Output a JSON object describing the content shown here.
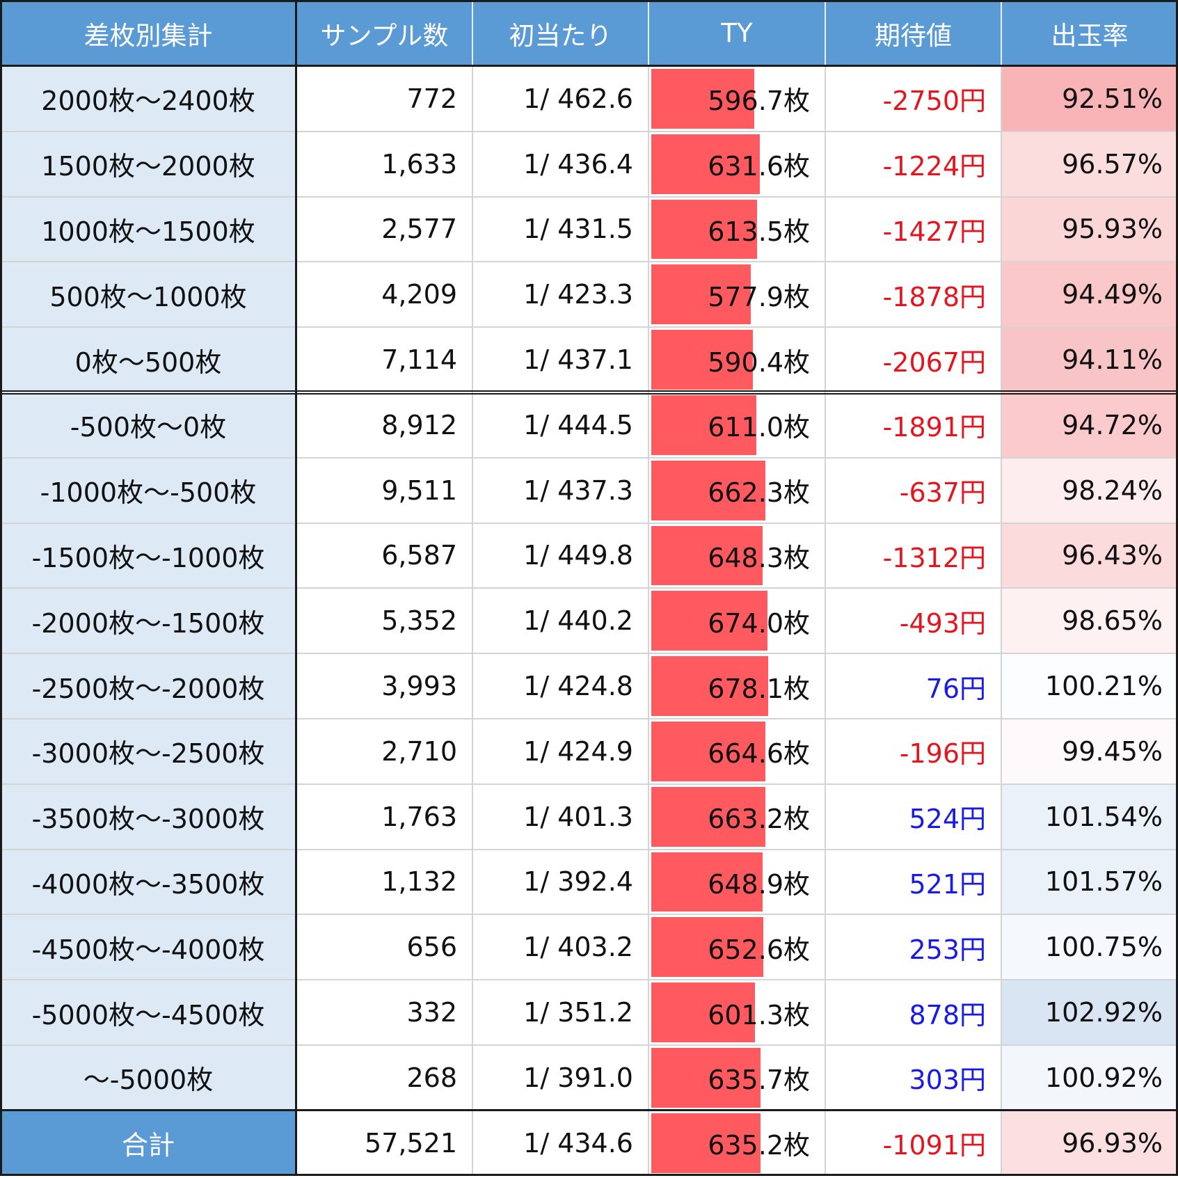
{
  "headers": [
    "差枚別集計",
    "サンプル数",
    "初当たり",
    "TY",
    "期待値",
    "出玉率"
  ],
  "rows": [
    {
      "label": "2000枚～2400枚",
      "samples": "772",
      "first_hit": "1/ 462.6",
      "ty": "596.7枚",
      "expected": "-2750円",
      "payout": "92.51%"
    },
    {
      "label": "1500枚～2000枚",
      "samples": "1,633",
      "first_hit": "1/ 436.4",
      "ty": "631.6枚",
      "expected": "-1224円",
      "payout": "96.57%"
    },
    {
      "label": "1000枚～1500枚",
      "samples": "2,577",
      "first_hit": "1/ 431.5",
      "ty": "613.5枚",
      "expected": "-1427円",
      "payout": "95.93%"
    },
    {
      "label": "500枚～1000枚",
      "samples": "4,209",
      "first_hit": "1/ 423.3",
      "ty": "577.9枚",
      "expected": "-1878円",
      "payout": "94.49%"
    },
    {
      "label": "0枚～500枚",
      "samples": "7,114",
      "first_hit": "1/ 437.1",
      "ty": "590.4枚",
      "expected": "-2067円",
      "payout": "94.11%"
    },
    {
      "label": "-500枚～0枚",
      "samples": "8,912",
      "first_hit": "1/ 444.5",
      "ty": "611.0枚",
      "expected": "-1891円",
      "payout": "94.72%"
    },
    {
      "label": "-1000枚～-500枚",
      "samples": "9,511",
      "first_hit": "1/ 437.3",
      "ty": "662.3枚",
      "expected": "-637円",
      "payout": "98.24%"
    },
    {
      "label": "-1500枚～-1000枚",
      "samples": "6,587",
      "first_hit": "1/ 449.8",
      "ty": "648.3枚",
      "expected": "-1312円",
      "payout": "96.43%"
    },
    {
      "label": "-2000枚～-1500枚",
      "samples": "5,352",
      "first_hit": "1/ 440.2",
      "ty": "674.0枚",
      "expected": "-493円",
      "payout": "98.65%"
    },
    {
      "label": "-2500枚～-2000枚",
      "samples": "3,993",
      "first_hit": "1/ 424.8",
      "ty": "678.1枚",
      "expected": "76円",
      "payout": "100.21%"
    },
    {
      "label": "-3000枚～-2500枚",
      "samples": "2,710",
      "first_hit": "1/ 424.9",
      "ty": "664.6枚",
      "expected": "-196円",
      "payout": "99.45%"
    },
    {
      "label": "-3500枚～-3000枚",
      "samples": "1,763",
      "first_hit": "1/ 401.3",
      "ty": "663.2枚",
      "expected": "524円",
      "payout": "101.54%"
    },
    {
      "label": "-4000枚～-3500枚",
      "samples": "1,132",
      "first_hit": "1/ 392.4",
      "ty": "648.9枚",
      "expected": "521円",
      "payout": "101.57%"
    },
    {
      "label": "-4500枚～-4000枚",
      "samples": "656",
      "first_hit": "1/ 403.2",
      "ty": "652.6枚",
      "expected": "253円",
      "payout": "100.75%"
    },
    {
      "label": "-5000枚～-4500枚",
      "samples": "332",
      "first_hit": "1/ 351.2",
      "ty": "601.3枚",
      "expected": "878円",
      "payout": "102.92%"
    },
    {
      "label": "～-5000枚",
      "samples": "268",
      "first_hit": "1/ 391.0",
      "ty": "635.7枚",
      "expected": "303円",
      "payout": "100.92%"
    }
  ],
  "total": {
    "label": "合計",
    "samples": "57,521",
    "first_hit": "1/ 434.6",
    "ty": "635.2枚",
    "expected": "-1091円",
    "payout": "96.93%"
  },
  "chart_data": {
    "type": "table",
    "ty_values": [
      596.7,
      631.6,
      613.5,
      577.9,
      590.4,
      611.0,
      662.3,
      648.3,
      674.0,
      678.1,
      664.6,
      663.2,
      648.9,
      652.6,
      601.3,
      635.7,
      635.2
    ],
    "expected_values": [
      -2750,
      -1224,
      -1427,
      -1878,
      -2067,
      -1891,
      -637,
      -1312,
      -493,
      76,
      -196,
      524,
      521,
      253,
      878,
      303,
      -1091
    ],
    "payout_values": [
      92.51,
      96.57,
      95.93,
      94.49,
      94.11,
      94.72,
      98.24,
      96.43,
      98.65,
      100.21,
      99.45,
      101.54,
      101.57,
      100.75,
      102.92,
      100.92,
      96.93
    ],
    "ty_bar_max": 678.1
  },
  "colors": {
    "header_bg": "#5b9bd5",
    "label_bg": "#ddeaf6",
    "ty_bar": "#ff5a5f",
    "negative_text": "#e6141e",
    "positive_text": "#1a1ae6",
    "payout_low": "#f8b4b6",
    "payout_mid": "#ffffff",
    "payout_high": "#dae5f3",
    "grid": "#d4d4d4",
    "frame": "#1a1a1a"
  }
}
